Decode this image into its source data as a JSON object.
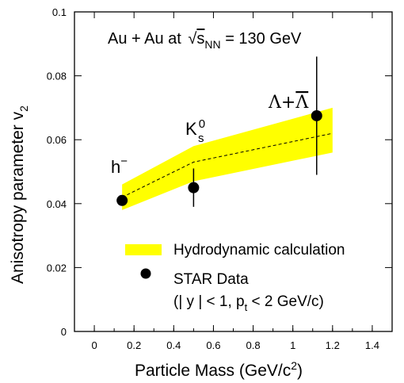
{
  "chart_data": {
    "type": "scatter",
    "title": "Au + Au at √s_NN = 130 GeV",
    "xlabel": "Particle Mass (GeV/c²)",
    "ylabel": "Anisotropy parameter v₂",
    "xlim": [
      -0.1,
      1.5
    ],
    "ylim": [
      0,
      0.1
    ],
    "x_ticks": [
      0,
      0.2,
      0.4,
      0.6,
      0.8,
      1,
      1.2,
      1.4
    ],
    "y_ticks": [
      0,
      0.02,
      0.04,
      0.06,
      0.08,
      0.1
    ],
    "grid": false,
    "legend_placement": "bottom-right",
    "series": [
      {
        "name": "Hydrodynamic calculation",
        "kind": "band",
        "color": "#ffff00",
        "x": [
          0.14,
          0.5,
          1.2
        ],
        "y_low": [
          0.038,
          0.047,
          0.056
        ],
        "y_high": [
          0.046,
          0.058,
          0.07
        ],
        "center": [
          0.042,
          0.053,
          0.062
        ]
      },
      {
        "name": "STAR Data",
        "kind": "points",
        "color": "#000000",
        "points": [
          {
            "label": "h⁻",
            "x": 0.14,
            "y": 0.041,
            "err": 0.0
          },
          {
            "label": "K⁰s",
            "x": 0.5,
            "y": 0.045,
            "err": 0.006
          },
          {
            "label": "Λ+Λ̄",
            "x": 1.12,
            "y": 0.0675,
            "err": 0.0185
          }
        ]
      }
    ],
    "legend_note": "(| y | < 1,  p_t < 2 GeV/c)"
  }
}
